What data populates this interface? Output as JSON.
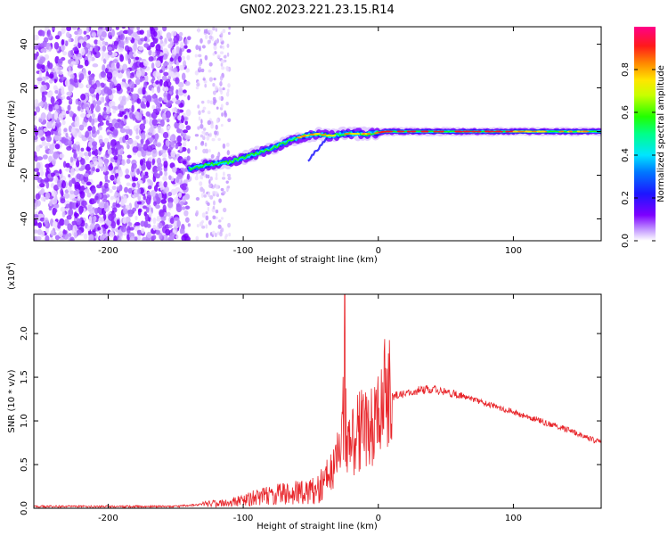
{
  "title": "GN02.2023.221.23.15.R14",
  "chart_data": [
    {
      "type": "heatmap",
      "xlabel": "Height of straight line (km)",
      "ylabel": "Frequency (Hz)",
      "xlim": [
        -255,
        165
      ],
      "ylim": [
        -50,
        48
      ],
      "xticks": [
        -200,
        -100,
        0,
        100
      ],
      "xtick_labels": [
        "-200",
        "-100",
        "0",
        "100"
      ],
      "yticks": [
        -40,
        -20,
        0,
        20,
        40
      ],
      "ytick_labels": [
        "-40",
        "-20",
        "0",
        "20",
        "40"
      ],
      "colorbar": {
        "label": "Normalized spectral amplitude",
        "range": [
          0.0,
          1.0
        ],
        "ticks": [
          0.0,
          0.2,
          0.4,
          0.6,
          0.8
        ],
        "tick_labels": [
          "0.0",
          "0.2",
          "0.4",
          "0.6",
          "0.8"
        ]
      },
      "trace": {
        "x": [
          -140,
          -125,
          -110,
          -95,
          -80,
          -65,
          -55,
          -45,
          -35,
          -25,
          -15,
          -5,
          5,
          20,
          50,
          80,
          110,
          140,
          165
        ],
        "y": [
          -17,
          -15,
          -14,
          -11,
          -8,
          -4,
          -2,
          -1,
          -2,
          -1,
          -1,
          -1,
          0,
          0,
          0,
          0,
          0,
          0,
          0
        ]
      },
      "noise_region": {
        "x": [
          -255,
          -140
        ],
        "y": [
          -50,
          48
        ]
      },
      "grid": false
    },
    {
      "type": "line",
      "xlabel": "Height of straight line (km)",
      "ylabel": "SNR (10 * v/v)",
      "yscale_label": "(x10",
      "yscale_exponent": "4",
      "yscale_close": ")",
      "xlim": [
        -255,
        165
      ],
      "ylim": [
        0,
        2.45
      ],
      "xticks": [
        -200,
        -100,
        0,
        100
      ],
      "xtick_labels": [
        "-200",
        "-100",
        "0",
        "100"
      ],
      "yticks": [
        0.0,
        0.5,
        1.0,
        1.5,
        2.0
      ],
      "ytick_labels": [
        "0.0",
        "0.5",
        "1.0",
        "1.5",
        "2.0"
      ],
      "color": "#e8252a",
      "envelope": {
        "x": [
          -255,
          -200,
          -150,
          -125,
          -110,
          -100,
          -80,
          -60,
          -45,
          -35,
          -30,
          -27,
          -25,
          -22,
          -20,
          -15,
          -10,
          -5,
          0,
          5,
          10,
          20,
          30,
          40,
          60,
          80,
          100,
          120,
          140,
          165
        ],
        "y": [
          0.02,
          0.02,
          0.02,
          0.05,
          0.06,
          0.1,
          0.15,
          0.18,
          0.2,
          0.4,
          0.6,
          0.9,
          1.1,
          0.7,
          0.75,
          0.85,
          0.9,
          0.95,
          1.05,
          1.18,
          1.28,
          1.32,
          1.35,
          1.36,
          1.3,
          1.2,
          1.1,
          1.0,
          0.9,
          0.75
        ]
      },
      "peak": {
        "x": -25,
        "y": 2.45
      },
      "grid": false
    }
  ]
}
